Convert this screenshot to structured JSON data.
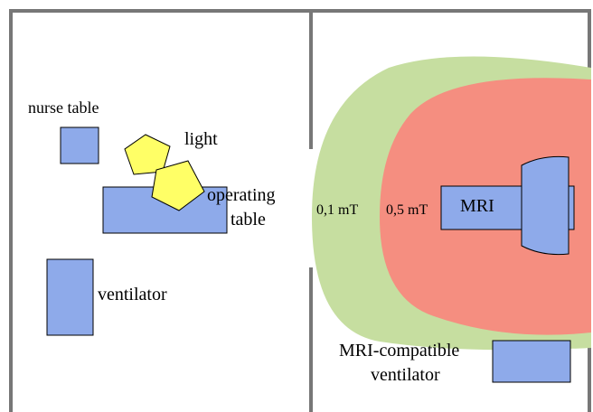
{
  "colors": {
    "background": "#ffffff",
    "wall": "#777777",
    "equipment_fill": "#8eaaea",
    "equipment_stroke": "#000000",
    "light_fill": "#ffff66",
    "zone_01_fill": "#c6dea0",
    "zone_05_fill": "#f58e80"
  },
  "left_room": {
    "nurse_table_label": "nurse table",
    "light_label": "light",
    "operating_table_label_line1": "operating",
    "operating_table_label_line2": "table",
    "ventilator_label": "ventilator"
  },
  "right_room": {
    "zone_outer_label": "0,1 mT",
    "zone_inner_label": "0,5 mT",
    "mri_label": "MRI",
    "compatible_ventilator_label_line1": "MRI-compatible",
    "compatible_ventilator_label_line2": "ventilator"
  }
}
